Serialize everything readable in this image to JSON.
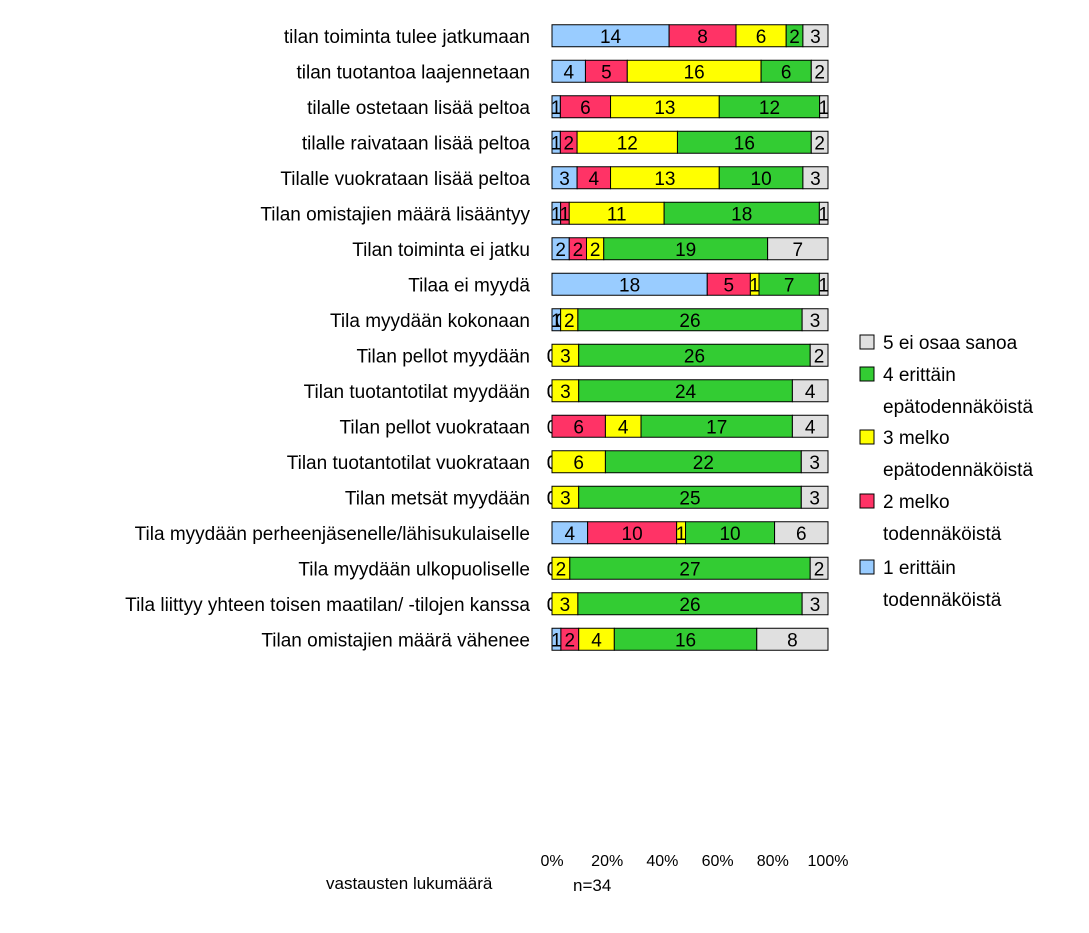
{
  "chart_data": {
    "type": "bar",
    "orientation": "horizontal",
    "stacked": "percent",
    "categories": [
      "tilan toiminta tulee jatkumaan",
      "tilan tuotantoa laajennetaan",
      "tilalle ostetaan lisää peltoa",
      "tilalle raivataan lisää peltoa",
      "Tilalle vuokrataan lisää peltoa",
      "Tilan omistajien määrä lisääntyy",
      "Tilan toiminta ei  jatku",
      "Tilaa ei myydä",
      "Tila myydään kokonaan",
      "Tilan pellot myydään",
      "Tilan tuotantotilat myydään",
      "Tilan pellot vuokrataan",
      "Tilan tuotantotilat vuokrataan",
      "Tilan metsät myydään",
      "Tila myydään perheenjäsenelle/lähisukulaiselle",
      "Tila myydään ulkopuoliselle",
      "Tila liittyy yhteen toisen maatilan/ -tilojen kanssa",
      "Tilan omistajien määrä vähenee"
    ],
    "series": [
      {
        "name": "1 erittäin todennäköistä",
        "color": "#99ccff",
        "values": [
          14,
          4,
          1,
          1,
          3,
          1,
          2,
          18,
          1,
          0,
          0,
          0,
          0,
          0,
          4,
          0,
          0,
          1
        ]
      },
      {
        "name": "2 melko todennäköistä",
        "color": "#ff3366",
        "values": [
          8,
          5,
          6,
          2,
          4,
          1,
          2,
          5,
          0,
          0,
          0,
          6,
          0,
          0,
          10,
          0,
          0,
          2
        ]
      },
      {
        "name": "3 melko epätodennäköistä",
        "color": "#ffff00",
        "values": [
          6,
          16,
          13,
          12,
          13,
          11,
          2,
          1,
          2,
          3,
          3,
          4,
          6,
          3,
          1,
          2,
          3,
          4
        ]
      },
      {
        "name": "4 erittäin epätodennäköistä",
        "color": "#33cc33",
        "values": [
          2,
          6,
          12,
          16,
          10,
          18,
          19,
          7,
          26,
          26,
          24,
          17,
          22,
          25,
          10,
          27,
          26,
          16
        ]
      },
      {
        "name": "5 ei osaa sanoa",
        "color": "#e0e0e0",
        "values": [
          3,
          2,
          1,
          2,
          3,
          1,
          7,
          1,
          3,
          2,
          4,
          4,
          3,
          3,
          6,
          2,
          3,
          8
        ]
      }
    ],
    "legend_order": [
      4,
      3,
      2,
      1,
      0
    ],
    "legend_position": "right",
    "xlim": [
      0,
      100
    ],
    "xticks": [
      "0%",
      "20%",
      "40%",
      "60%",
      "80%",
      "100%"
    ],
    "grid": false
  },
  "footer": {
    "label": "vastausten lukumäärä",
    "n": "n=34"
  }
}
